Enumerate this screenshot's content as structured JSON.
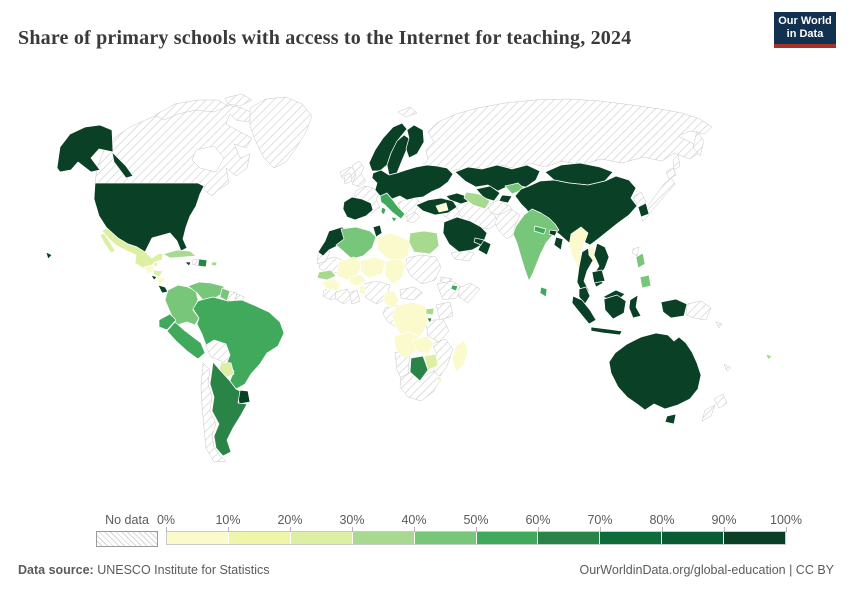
{
  "header": {
    "title": "Share of primary schools with access to the Internet for teaching, 2024",
    "logo_line1": "Our World",
    "logo_line2": "in Data",
    "logo_bg_color": "#12304f",
    "logo_accent_color": "#a63229"
  },
  "legend": {
    "no_data_label": "No data",
    "ticks": [
      "0%",
      "10%",
      "20%",
      "30%",
      "40%",
      "50%",
      "60%",
      "70%",
      "80%",
      "90%",
      "100%"
    ]
  },
  "footer": {
    "source_label": "Data source:",
    "source_text": " UNESCO Institute for Statistics",
    "license_text": "OurWorldinData.org/global-education | CC BY"
  },
  "chart_data": {
    "type": "heatmap",
    "subtype": "world-choropleth-map",
    "title": "Share of primary schools with access to the Internet for teaching",
    "year": 2024,
    "unit": "% of primary schools",
    "no_data_style": "white with light gray diagonal hatching",
    "legend_position": "bottom",
    "legend_bands": [
      {
        "band": "0-10%",
        "color": "#fbfacd"
      },
      {
        "band": "10-20%",
        "color": "#f0f6a9"
      },
      {
        "band": "20-30%",
        "color": "#dcefa2"
      },
      {
        "band": "30-40%",
        "color": "#a7d98f"
      },
      {
        "band": "40-50%",
        "color": "#78c679"
      },
      {
        "band": "50-60%",
        "color": "#41a95c"
      },
      {
        "band": "60-70%",
        "color": "#2b8447"
      },
      {
        "band": "70-80%",
        "color": "#0e6b3a"
      },
      {
        "band": "80-90%",
        "color": "#085b33"
      },
      {
        "band": "90-100%",
        "color": "#0a4026"
      }
    ],
    "countries": {
      "United States": "90-100%",
      "Alaska (United States)": "90-100%",
      "Hawaii (United States)": "90-100%",
      "Canada": "no-data",
      "Greenland": "no-data",
      "Iceland": "no-data",
      "Mexico": "20-30%",
      "Guatemala": "0-10%",
      "Belize": "20-30%",
      "Honduras": "20-30%",
      "El Salvador": "90-100%",
      "Nicaragua": "0-10%",
      "Costa Rica": "90-100%",
      "Panama": "50-60%",
      "Cuba": "30-40%",
      "Jamaica": "90-100%",
      "Haiti": "no-data",
      "Dominican Republic": "60-70%",
      "Puerto Rico": "30-40%",
      "Colombia": "40-50%",
      "Venezuela": "40-50%",
      "Guyana": "40-50%",
      "Suriname": "no-data",
      "French Guiana": "no-data",
      "Ecuador": "50-60%",
      "Peru": "50-60%",
      "Brazil": "50-60%",
      "Bolivia": "no-data",
      "Paraguay": "20-30%",
      "Chile": "no-data",
      "Argentina": "60-70%",
      "Uruguay": "90-100%",
      "United Kingdom": "no-data",
      "Ireland": "no-data",
      "France": "no-data",
      "Spain": "90-100%",
      "Portugal": "90-100%",
      "Norway": "90-100%",
      "Sweden": "90-100%",
      "Finland": "90-100%",
      "Denmark": "90-100%",
      "Central and Eastern Europe": "90-100%",
      "Italy": "50-60%",
      "Balkans": "no-data",
      "Greece": "no-data",
      "Turkey": "90-100%",
      "Georgia and Azerbaijan": "90-100%",
      "Russia": "no-data",
      "Svalbard": "no-data",
      "Kazakhstan": "90-100%",
      "Uzbekistan": "90-100%",
      "Turkmenistan": "30-40%",
      "Kyrgyzstan": "40-50%",
      "Tajikistan": "90-100%",
      "Iran": "no-data",
      "Iraq": "no-data",
      "Syria": "0-10%",
      "Saudi Arabia": "90-100%",
      "Yemen": "no-data",
      "Oman": "90-100%",
      "United Arab Emirates": "90-100%",
      "Afghanistan": "no-data",
      "Pakistan": "no-data",
      "India": "40-50%",
      "Nepal": "50-60%",
      "Bhutan": "90-100%",
      "Bangladesh": "90-100%",
      "Sri Lanka": "50-60%",
      "Myanmar": "0-10%",
      "Thailand": "90-100%",
      "Laos": "0-10%",
      "Vietnam": "90-100%",
      "Cambodia": "90-100%",
      "Malaysia": "90-100%",
      "Indonesia": "90-100%",
      "Philippines": "40-50%",
      "China": "90-100%",
      "Mongolia": "90-100%",
      "North Korea": "no-data",
      "South Korea": "90-100%",
      "Japan": "no-data",
      "Taiwan": "no-data",
      "Papua New Guinea": "no-data",
      "Solomon Islands": "no-data",
      "Fiji": "30-40%",
      "New Caledonia": "no-data",
      "Australia": "90-100%",
      "New Zealand": "no-data",
      "Morocco": "90-100%",
      "Western Sahara": "no-data",
      "Algeria": "40-50%",
      "Tunisia": "90-100%",
      "Libya": "0-10%",
      "Egypt": "30-40%",
      "Mauritania": "no-data",
      "Mali": "0-10%",
      "Niger": "0-10%",
      "Chad": "0-10%",
      "Sudan": "no-data",
      "Eritrea": "no-data",
      "Senegal": "30-40%",
      "Guinea": "0-10%",
      "Sierra Leone and Liberia": "no-data",
      "Cote d'Ivoire": "no-data",
      "Ghana": "no-data",
      "Burkina Faso": "0-10%",
      "Benin and Togo": "0-10%",
      "Nigeria": "no-data",
      "Cameroon": "0-10%",
      "Central African Republic": "no-data",
      "Gabon and Congo": "no-data",
      "Ethiopia": "no-data",
      "Somalia": "no-data",
      "Djibouti": "50-60%",
      "Kenya": "no-data",
      "Uganda": "30-40%",
      "Rwanda": "60-70%",
      "DR Congo": "0-10%",
      "Tanzania": "no-data",
      "Angola": "0-10%",
      "Zambia": "0-10%",
      "Malawi and Mozambique": "no-data",
      "Zimbabwe": "20-30%",
      "Botswana": "60-70%",
      "Namibia": "no-data",
      "South Africa": "no-data",
      "Eswatini": "10-20%",
      "Madagascar": "0-10%"
    }
  }
}
